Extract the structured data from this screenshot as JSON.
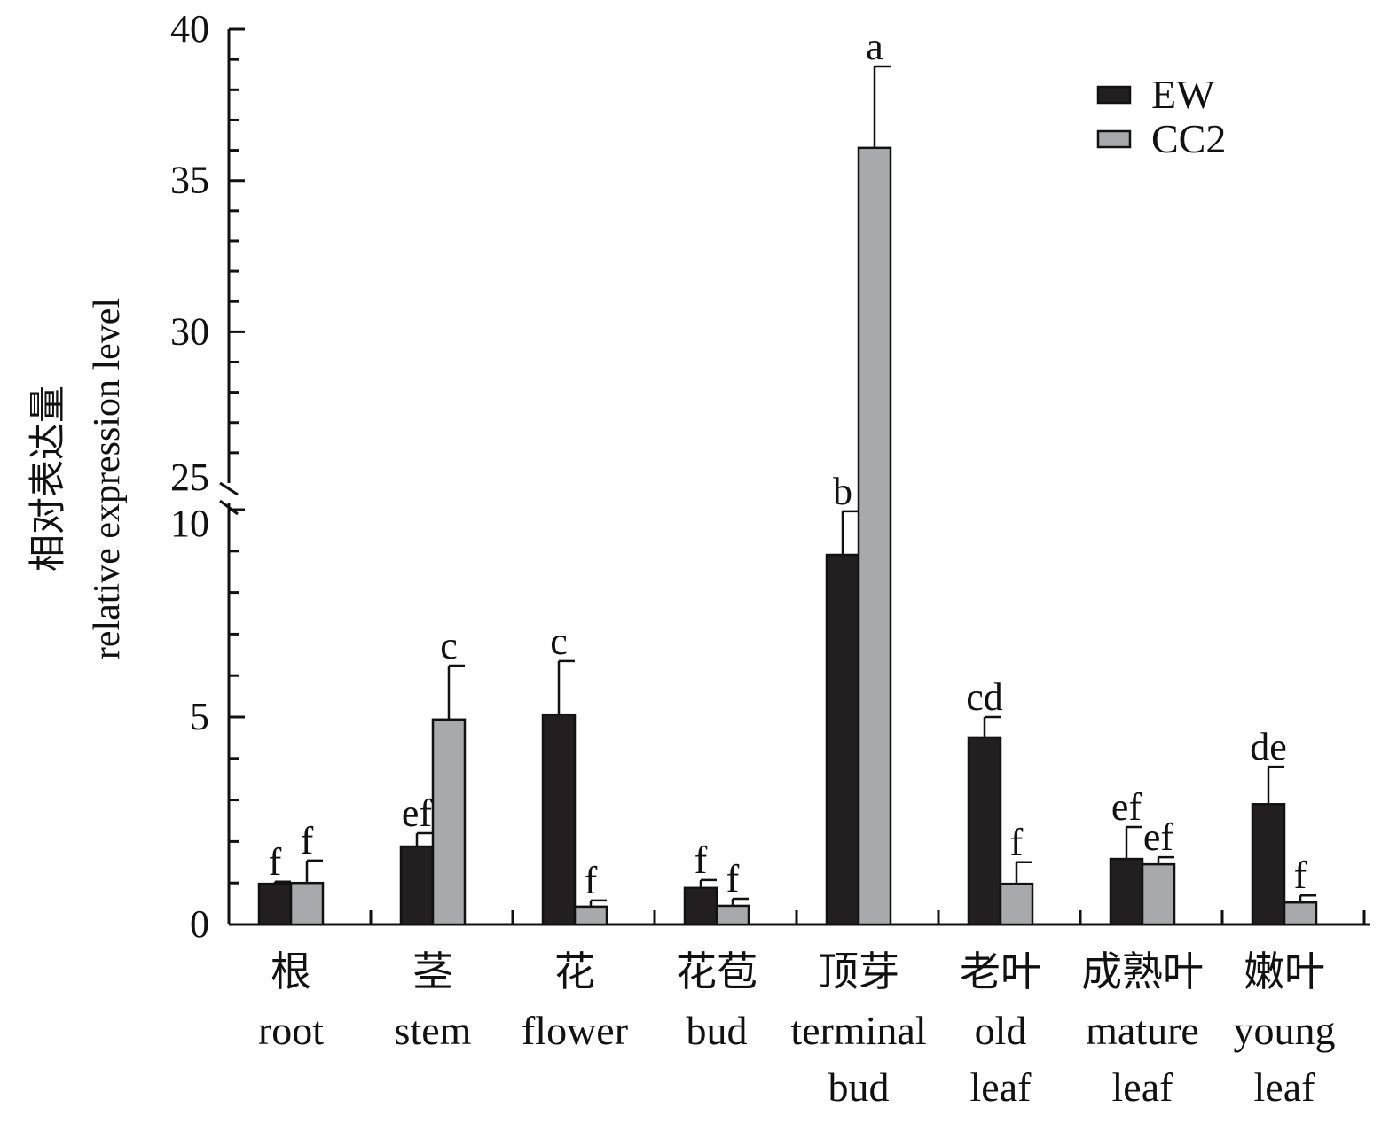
{
  "chart_data": {
    "type": "bar",
    "ylabel_cn": "相对表达量",
    "ylabel": "relative expression level",
    "axis_break": [
      10,
      25
    ],
    "ylim_lower": [
      0,
      10
    ],
    "ylim_upper": [
      25,
      40
    ],
    "yticks_lower": [
      "0",
      "5",
      "10"
    ],
    "yticks_upper": [
      "25",
      "30",
      "35",
      "40"
    ],
    "categories": [
      {
        "cn": "根",
        "en": [
          "root"
        ]
      },
      {
        "cn": "茎",
        "en": [
          "stem"
        ]
      },
      {
        "cn": "花",
        "en": [
          "flower"
        ]
      },
      {
        "cn": "花苞",
        "en": [
          "bud"
        ]
      },
      {
        "cn": "顶芽",
        "en": [
          "terminal",
          "bud"
        ]
      },
      {
        "cn": "老叶",
        "en": [
          "old",
          "leaf"
        ]
      },
      {
        "cn": "成熟叶",
        "en": [
          "mature",
          "leaf"
        ]
      },
      {
        "cn": "嫩叶",
        "en": [
          "young",
          "leaf"
        ]
      }
    ],
    "series": [
      {
        "name": "EW",
        "color": "#231f20",
        "values": [
          0.98,
          1.88,
          5.06,
          0.88,
          8.91,
          4.51,
          1.58,
          2.9
        ],
        "errors": [
          0.05,
          0.32,
          1.29,
          0.19,
          1.05,
          0.49,
          0.77,
          0.9
        ],
        "letters": [
          "f",
          "ef",
          "c",
          "f",
          "b",
          "cd",
          "ef",
          "de"
        ]
      },
      {
        "name": "CC2",
        "color": "#a7a9ac",
        "values": [
          1.0,
          4.94,
          0.43,
          0.45,
          36.08,
          0.98,
          1.45,
          0.53
        ],
        "errors": [
          0.54,
          1.3,
          0.15,
          0.17,
          2.69,
          0.52,
          0.17,
          0.17
        ],
        "letters": [
          "f",
          "c",
          "f",
          "f",
          "a",
          "f",
          "ef",
          "f"
        ]
      }
    ],
    "legend": "top-right"
  }
}
